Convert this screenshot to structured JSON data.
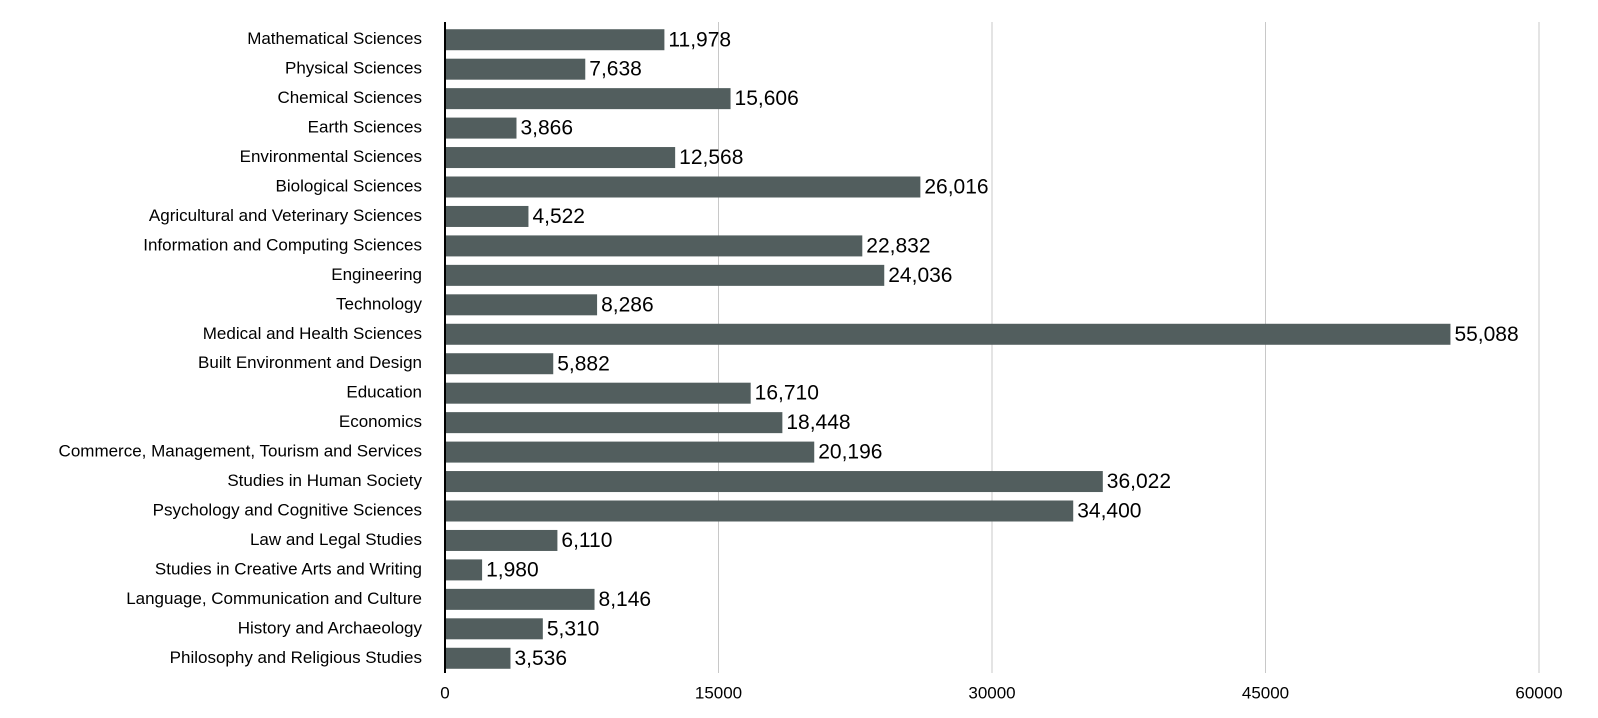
{
  "chart_data": {
    "type": "bar",
    "orientation": "horizontal",
    "categories": [
      "Mathematical Sciences",
      "Physical Sciences",
      "Chemical Sciences",
      "Earth Sciences",
      "Environmental Sciences",
      "Biological Sciences",
      "Agricultural and Veterinary Sciences",
      "Information and Computing Sciences",
      "Engineering",
      "Technology",
      "Medical and Health Sciences",
      "Built Environment and Design",
      "Education",
      "Economics",
      "Commerce, Management, Tourism and Services",
      "Studies in Human Society",
      "Psychology and Cognitive Sciences",
      "Law and Legal Studies",
      "Studies in Creative Arts and Writing",
      "Language, Communication and Culture",
      "History and Archaeology",
      "Philosophy and Religious Studies"
    ],
    "values": [
      11978,
      7638,
      15606,
      3866,
      12568,
      26016,
      4522,
      22832,
      24036,
      8286,
      55088,
      5882,
      16710,
      18448,
      20196,
      36022,
      34400,
      6110,
      1980,
      8146,
      5310,
      3536
    ],
    "value_labels": [
      "11,978",
      "7,638",
      "15,606",
      "3,866",
      "12,568",
      "26,016",
      "4,522",
      "22,832",
      "24,036",
      "8,286",
      "55,088",
      "5,882",
      "16,710",
      "18,448",
      "20,196",
      "36,022",
      "34,400",
      "6,110",
      "1,980",
      "8,146",
      "5,310",
      "3,536"
    ],
    "color": "#525e5e",
    "xlim": [
      0,
      60000
    ],
    "xticks": [
      0,
      15000,
      30000,
      45000,
      60000
    ],
    "grid": true
  }
}
